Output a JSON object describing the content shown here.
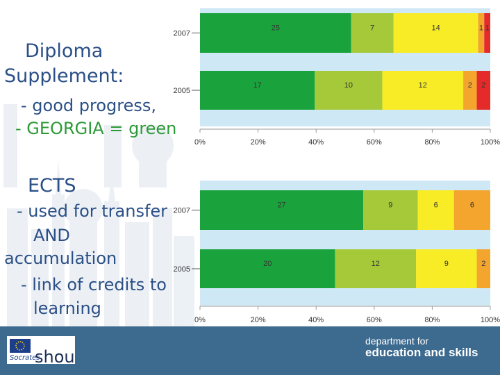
{
  "text": {
    "line1": "Diploma",
    "line2": "Supplement:",
    "line3": "- good progress,",
    "line4": "- GEORGIA = green",
    "line5": "ECTS",
    "line6": "- used for transfer",
    "line7": "AND",
    "line8": "accumulation",
    "line9": "- link of credits to",
    "line10": "learning"
  },
  "footer": {
    "dept_line1": "department for",
    "dept_line2": "education and skills",
    "logo_socrates": "Socrates",
    "logo_fragment": "shou"
  },
  "colors": {
    "green": "#1aa33c",
    "light_green": "#a6c93a",
    "yellow": "#f7ec26",
    "orange": "#f4a52e",
    "red": "#e52a2a",
    "footer": "#3d6a8f",
    "text_blue": "#2a4f86",
    "text_green": "#2c9a36"
  },
  "chart_data": [
    {
      "type": "bar",
      "orientation": "horizontal",
      "stacked": "percent",
      "categories": [
        "2007",
        "2005"
      ],
      "series": [
        {
          "name": "green",
          "values": [
            25,
            17
          ]
        },
        {
          "name": "light green",
          "values": [
            7,
            10
          ]
        },
        {
          "name": "yellow",
          "values": [
            14,
            12
          ]
        },
        {
          "name": "orange",
          "values": [
            1,
            2
          ]
        },
        {
          "name": "red",
          "values": [
            1,
            2
          ]
        }
      ],
      "xticks": [
        "0%",
        "20%",
        "40%",
        "60%",
        "80%",
        "100%"
      ],
      "xlim": [
        0,
        100
      ]
    },
    {
      "type": "bar",
      "orientation": "horizontal",
      "stacked": "percent",
      "categories": [
        "2007",
        "2005"
      ],
      "series": [
        {
          "name": "green",
          "values": [
            27,
            20
          ]
        },
        {
          "name": "light green",
          "values": [
            9,
            12
          ]
        },
        {
          "name": "yellow",
          "values": [
            6,
            9
          ]
        },
        {
          "name": "orange",
          "values": [
            6,
            2
          ]
        }
      ],
      "xticks": [
        "0%",
        "20%",
        "40%",
        "60%",
        "80%",
        "100%"
      ],
      "xlim": [
        0,
        100
      ]
    }
  ]
}
